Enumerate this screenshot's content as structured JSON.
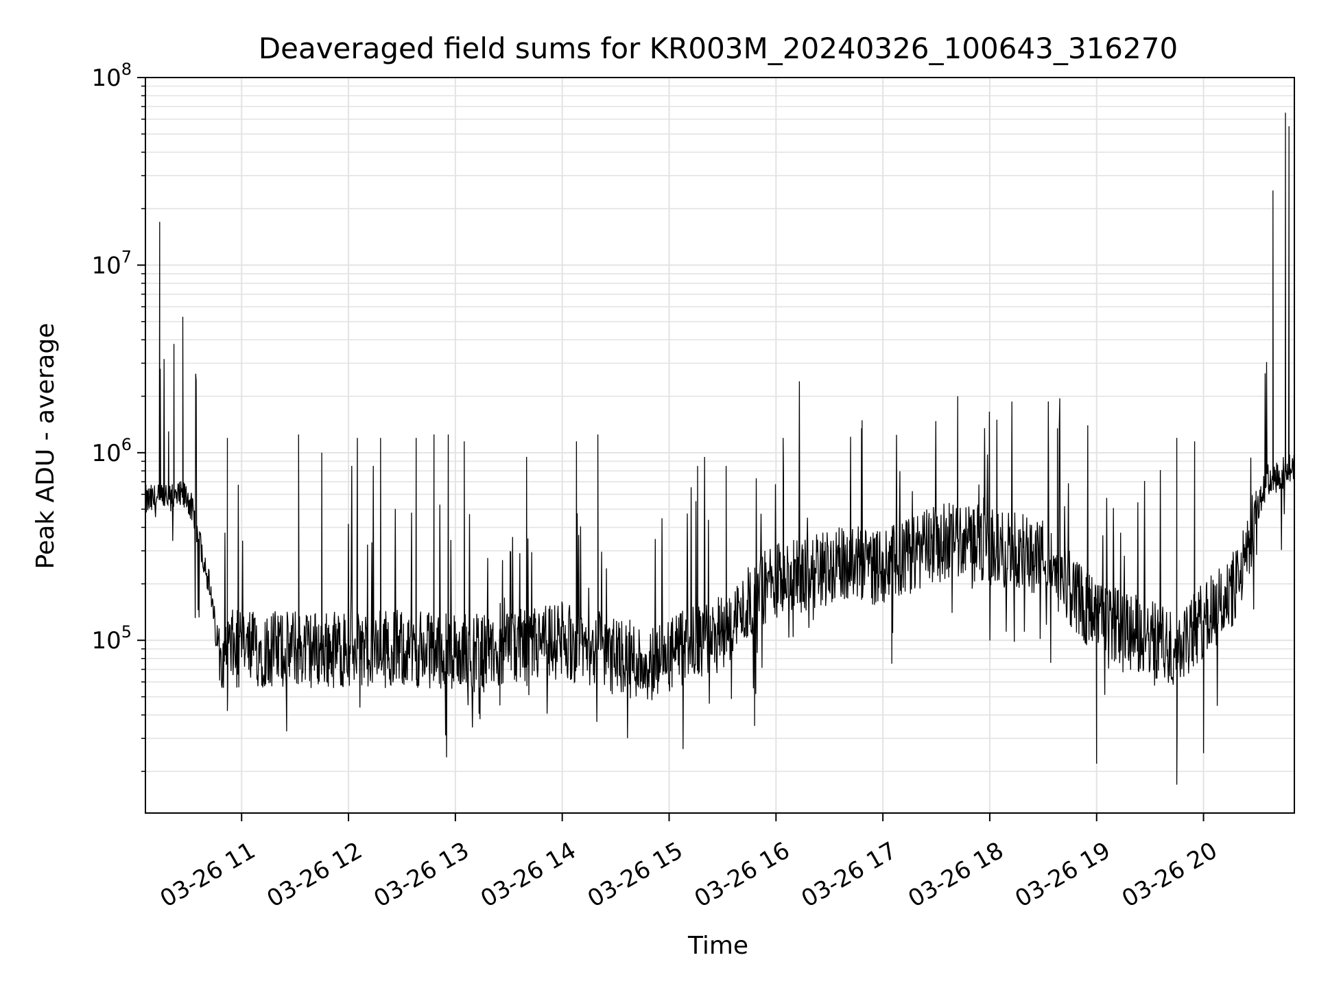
{
  "chart_data": {
    "type": "line",
    "title": "Deaveraged field sums for KR003M_20240326_100643_316270",
    "xlabel": "Time",
    "ylabel": "Peak ADU - average",
    "y_scale": "log",
    "ylim": [
      12000,
      100000000
    ],
    "xlim": [
      "2024-03-26 10:06",
      "2024-03-26 20:51"
    ],
    "grid": true,
    "legend": "none",
    "line_color": "#000000",
    "x_ticks": [
      {
        "t": "2024-03-26 11:00",
        "label": "03-26 11"
      },
      {
        "t": "2024-03-26 12:00",
        "label": "03-26 12"
      },
      {
        "t": "2024-03-26 13:00",
        "label": "03-26 13"
      },
      {
        "t": "2024-03-26 14:00",
        "label": "03-26 14"
      },
      {
        "t": "2024-03-26 15:00",
        "label": "03-26 15"
      },
      {
        "t": "2024-03-26 16:00",
        "label": "03-26 16"
      },
      {
        "t": "2024-03-26 17:00",
        "label": "03-26 17"
      },
      {
        "t": "2024-03-26 18:00",
        "label": "03-26 18"
      },
      {
        "t": "2024-03-26 19:00",
        "label": "03-26 19"
      },
      {
        "t": "2024-03-26 20:00",
        "label": "03-26 20"
      }
    ],
    "y_ticks": [
      {
        "v": 100000,
        "base": "10",
        "exp": "5"
      },
      {
        "v": 1000000,
        "base": "10",
        "exp": "6"
      },
      {
        "v": 10000000,
        "base": "10",
        "exp": "7"
      },
      {
        "v": 100000000,
        "base": "10",
        "exp": "8"
      }
    ],
    "series": [
      {
        "baseline": [
          {
            "t": "2024-03-26 10:06",
            "v": 550000
          },
          {
            "t": "2024-03-26 10:30",
            "v": 580000
          },
          {
            "t": "2024-03-26 10:40",
            "v": 250000
          },
          {
            "t": "2024-03-26 10:47",
            "v": 90000
          },
          {
            "t": "2024-03-26 12:30",
            "v": 90000
          },
          {
            "t": "2024-03-26 13:20",
            "v": 85000
          },
          {
            "t": "2024-03-26 14:00",
            "v": 100000
          },
          {
            "t": "2024-03-26 14:50",
            "v": 75000
          },
          {
            "t": "2024-03-26 15:30",
            "v": 110000
          },
          {
            "t": "2024-03-26 15:55",
            "v": 200000
          },
          {
            "t": "2024-03-26 16:30",
            "v": 250000
          },
          {
            "t": "2024-03-26 17:00",
            "v": 250000
          },
          {
            "t": "2024-03-26 17:40",
            "v": 350000
          },
          {
            "t": "2024-03-26 18:30",
            "v": 280000
          },
          {
            "t": "2024-03-26 19:00",
            "v": 130000
          },
          {
            "t": "2024-03-26 19:45",
            "v": 90000
          },
          {
            "t": "2024-03-26 20:20",
            "v": 200000
          },
          {
            "t": "2024-03-26 20:35",
            "v": 700000
          },
          {
            "t": "2024-03-26 20:51",
            "v": 850000
          }
        ],
        "spikes": [
          {
            "t": "2024-03-26 10:14",
            "v": 17000000
          },
          {
            "t": "2024-03-26 10:19",
            "v": 1300000
          },
          {
            "t": "2024-03-26 10:22",
            "v": 3800000
          },
          {
            "t": "2024-03-26 10:27",
            "v": 5300000
          },
          {
            "t": "2024-03-26 10:52",
            "v": 1200000
          },
          {
            "t": "2024-03-26 11:32",
            "v": 1250000
          },
          {
            "t": "2024-03-26 11:45",
            "v": 1000000
          },
          {
            "t": "2024-03-26 12:05",
            "v": 1200000
          },
          {
            "t": "2024-03-26 12:18",
            "v": 1200000
          },
          {
            "t": "2024-03-26 12:38",
            "v": 1200000
          },
          {
            "t": "2024-03-26 12:48",
            "v": 1250000
          },
          {
            "t": "2024-03-26 12:56",
            "v": 1250000
          },
          {
            "t": "2024-03-26 13:05",
            "v": 1150000
          },
          {
            "t": "2024-03-26 13:40",
            "v": 950000
          },
          {
            "t": "2024-03-26 14:08",
            "v": 1150000
          },
          {
            "t": "2024-03-26 14:20",
            "v": 1250000
          },
          {
            "t": "2024-03-26 15:16",
            "v": 850000
          },
          {
            "t": "2024-03-26 15:32",
            "v": 850000
          },
          {
            "t": "2024-03-26 16:04",
            "v": 1200000
          },
          {
            "t": "2024-03-26 16:48",
            "v": 1350000
          },
          {
            "t": "2024-03-26 17:42",
            "v": 2000000
          },
          {
            "t": "2024-03-26 18:04",
            "v": 1500000
          },
          {
            "t": "2024-03-26 18:38",
            "v": 1350000
          },
          {
            "t": "2024-03-26 18:55",
            "v": 1400000
          },
          {
            "t": "2024-03-26 19:45",
            "v": 1200000
          },
          {
            "t": "2024-03-26 19:55",
            "v": 1150000
          },
          {
            "t": "2024-03-26 20:39",
            "v": 25000000
          },
          {
            "t": "2024-03-26 20:46",
            "v": 65000000
          },
          {
            "t": "2024-03-26 20:48",
            "v": 55000000
          }
        ],
        "dips": [
          {
            "t": "2024-03-26 10:52",
            "v": 42000
          },
          {
            "t": "2024-03-26 13:25",
            "v": 45000
          },
          {
            "t": "2024-03-26 15:48",
            "v": 35000
          },
          {
            "t": "2024-03-26 17:05",
            "v": 75000
          },
          {
            "t": "2024-03-26 19:00",
            "v": 22000
          },
          {
            "t": "2024-03-26 19:45",
            "v": 17000
          },
          {
            "t": "2024-03-26 20:00",
            "v": 25000
          }
        ]
      }
    ]
  }
}
